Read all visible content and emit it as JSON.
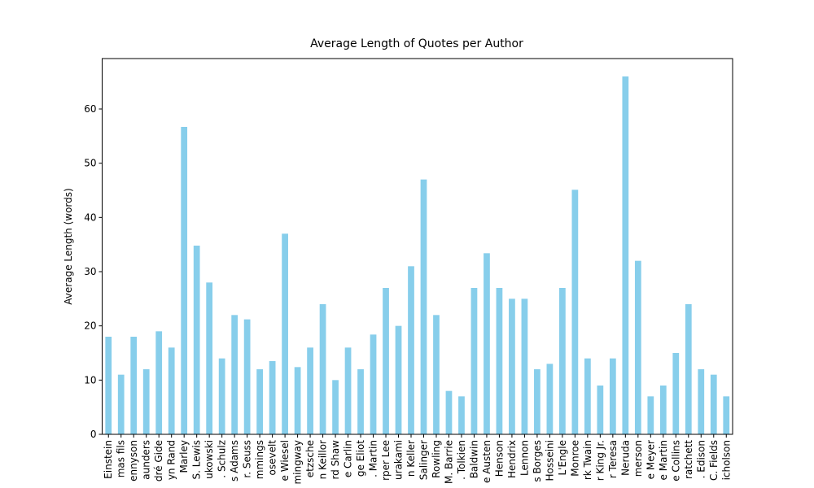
{
  "chart_data": {
    "type": "bar",
    "title": "Average Length of Quotes per Author",
    "y_label": "Average Length (words)",
    "categories": [
      "Einstein",
      "mas fils",
      "ennyson",
      "aunders",
      "dré Gide",
      "yn Rand",
      "Marley",
      "S. Lewis",
      "ukowski",
      ". Schulz",
      "s Adams",
      "r. Seuss",
      "mmings",
      "osevelt",
      "e Wiesel",
      "mingway",
      "etzsche",
      "n Keillor",
      "rd Shaw",
      "e Carlin",
      "ge Eliot",
      ". Martin",
      "rper Lee",
      "urakami",
      "n Keller",
      "Salinger",
      "Rowling",
      "M. Barrie",
      ". Tolkien",
      "Baldwin",
      "e Austen",
      "Henson",
      "Hendrix",
      "Lennon",
      "s Borges",
      "Hosseini",
      "L'Engle",
      "Monroe",
      "rk Twain",
      "r King Jr.",
      "r Teresa",
      "Neruda",
      "merson",
      "e Meyer",
      "e Martin",
      "e Collins",
      "ratchett",
      ". Edison",
      "C. Fields",
      "icholson"
    ],
    "values": [
      18,
      11,
      18,
      12,
      19,
      16,
      56.7,
      34.8,
      28,
      14,
      22,
      21.2,
      12,
      13.5,
      37,
      12.4,
      16,
      24,
      10,
      16,
      12,
      18.4,
      27,
      20,
      31,
      47,
      22,
      8,
      7,
      27,
      33.4,
      27,
      25,
      25,
      12,
      13,
      27,
      45.1,
      14,
      9,
      14,
      66,
      32,
      7,
      9,
      15,
      24,
      12,
      11,
      7
    ],
    "color": "#87ceeb",
    "ylim": [
      0,
      69.3
    ],
    "yticks": [
      0,
      10,
      20,
      30,
      40,
      50,
      60
    ],
    "grid": false
  }
}
